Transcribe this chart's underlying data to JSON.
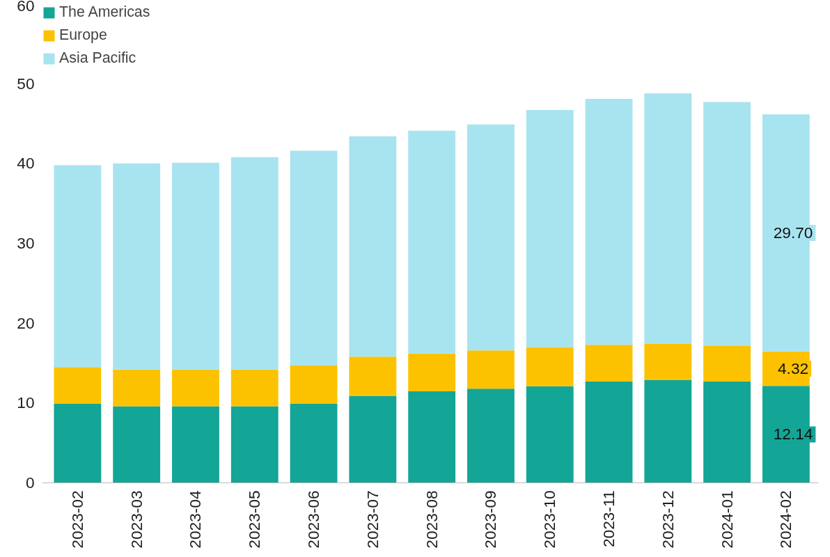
{
  "chart_data": {
    "type": "bar",
    "stacked": true,
    "categories": [
      "2023-02",
      "2023-03",
      "2023-04",
      "2023-05",
      "2023-06",
      "2023-07",
      "2023-08",
      "2023-09",
      "2023-10",
      "2023-11",
      "2023-12",
      "2024-01",
      "2024-02"
    ],
    "series": [
      {
        "name": "The Americas",
        "color": "#13a596",
        "values": [
          9.9,
          9.6,
          9.6,
          9.6,
          9.9,
          10.9,
          11.5,
          11.8,
          12.1,
          12.7,
          12.9,
          12.7,
          12.14
        ],
        "value_labels": [
          null,
          null,
          null,
          null,
          null,
          null,
          null,
          null,
          null,
          null,
          null,
          null,
          "12.14"
        ]
      },
      {
        "name": "Europe",
        "color": "#fcc200",
        "values": [
          4.6,
          4.6,
          4.6,
          4.6,
          4.8,
          4.9,
          4.7,
          4.8,
          4.9,
          4.6,
          4.5,
          4.5,
          4.32
        ],
        "value_labels": [
          null,
          null,
          null,
          null,
          null,
          null,
          null,
          null,
          null,
          null,
          null,
          null,
          "4.32"
        ]
      },
      {
        "name": "Asia Pacific",
        "color": "#a8e4ef",
        "values": [
          25.3,
          25.8,
          25.9,
          26.6,
          26.9,
          27.6,
          27.9,
          28.3,
          29.7,
          30.8,
          31.4,
          30.5,
          29.7
        ],
        "value_labels": [
          null,
          null,
          null,
          null,
          null,
          null,
          null,
          null,
          null,
          null,
          null,
          null,
          "29.70"
        ]
      }
    ],
    "ylim": [
      0,
      60
    ],
    "yticks": [
      0,
      10,
      20,
      30,
      40,
      50,
      60
    ],
    "grid": false,
    "legend": "top left"
  }
}
